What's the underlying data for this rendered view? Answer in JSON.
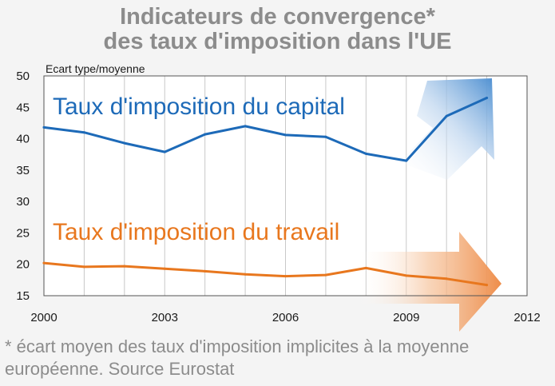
{
  "title_lines": [
    "Indicateurs de convergence*",
    "des taux d'imposition dans l'UE"
  ],
  "footnote": "* écart moyen des taux d'imposition implicites à la moyenne européenne. Source Eurostat",
  "colors": {
    "capital": "#1d6ab8",
    "travail": "#e8771e",
    "background": "#f4f4f4",
    "title": "#8c8c8c"
  },
  "chart_data": {
    "type": "line",
    "ylabel": "Ecart type/moyenne",
    "xlabel": "",
    "xlim": [
      2000,
      2012
    ],
    "ylim": [
      15,
      50
    ],
    "x_ticks": [
      2000,
      2003,
      2006,
      2009,
      2012
    ],
    "y_ticks": [
      15,
      20,
      25,
      30,
      35,
      40,
      45,
      50
    ],
    "grid": "vertical",
    "x": [
      2000,
      2001,
      2002,
      2003,
      2004,
      2005,
      2006,
      2007,
      2008,
      2009,
      2010,
      2011
    ],
    "series": [
      {
        "name": "Taux d'imposition du capital",
        "color": "#1d6ab8",
        "values": [
          41.8,
          41.0,
          39.3,
          37.9,
          40.7,
          42.0,
          40.6,
          40.3,
          37.6,
          36.5,
          43.6,
          46.5
        ]
      },
      {
        "name": "Taux d'imposition du travail",
        "color": "#e8771e",
        "values": [
          20.2,
          19.6,
          19.7,
          19.3,
          18.9,
          18.4,
          18.1,
          18.3,
          19.4,
          18.2,
          17.7,
          16.7
        ]
      }
    ]
  }
}
